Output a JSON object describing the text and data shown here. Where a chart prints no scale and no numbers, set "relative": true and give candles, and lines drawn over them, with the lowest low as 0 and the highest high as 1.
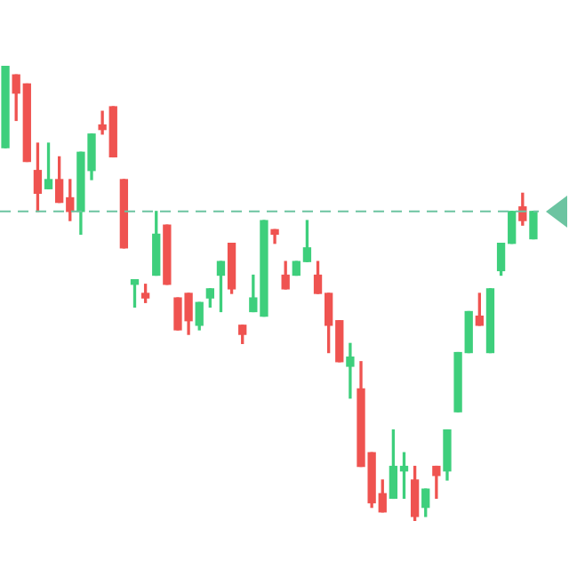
{
  "chart_data": {
    "type": "candlestick",
    "relative": true,
    "categories": [
      null,
      null,
      null,
      null,
      null,
      null,
      null,
      null,
      null,
      null,
      null,
      null,
      null,
      null,
      null,
      null,
      null,
      null,
      null,
      null,
      null,
      null,
      null,
      null,
      null,
      null,
      null,
      null,
      null,
      null,
      null,
      null,
      null,
      null,
      null,
      null,
      null,
      null,
      null,
      null,
      null,
      null,
      null,
      null,
      null,
      null,
      null,
      null,
      null,
      null
    ],
    "ohlc": [
      [
        0.82,
        1.0,
        0.82,
        1.0
      ],
      [
        0.98,
        0.98,
        0.88,
        0.94
      ],
      [
        0.96,
        0.96,
        0.79,
        0.79
      ],
      [
        0.77,
        0.83,
        0.68,
        0.72
      ],
      [
        0.73,
        0.83,
        0.73,
        0.75
      ],
      [
        0.75,
        0.8,
        0.7,
        0.7
      ],
      [
        0.71,
        0.75,
        0.66,
        0.68
      ],
      [
        0.68,
        0.81,
        0.63,
        0.81
      ],
      [
        0.77,
        0.85,
        0.75,
        0.85
      ],
      [
        0.87,
        0.9,
        0.85,
        0.86
      ],
      [
        0.91,
        0.91,
        0.8,
        0.8
      ],
      [
        0.75,
        0.75,
        0.6,
        0.6
      ],
      [
        0.52,
        0.53,
        0.47,
        0.53
      ],
      [
        0.5,
        0.52,
        0.48,
        0.49
      ],
      [
        0.54,
        0.68,
        0.54,
        0.63
      ],
      [
        0.65,
        0.65,
        0.52,
        0.52
      ],
      [
        0.49,
        0.49,
        0.42,
        0.42
      ],
      [
        0.5,
        0.5,
        0.41,
        0.44
      ],
      [
        0.43,
        0.48,
        0.42,
        0.48
      ],
      [
        0.49,
        0.51,
        0.47,
        0.51
      ],
      [
        0.54,
        0.57,
        0.46,
        0.57
      ],
      [
        0.61,
        0.61,
        0.5,
        0.51
      ],
      [
        0.43,
        0.43,
        0.39,
        0.41
      ],
      [
        0.46,
        0.54,
        0.46,
        0.49
      ],
      [
        0.45,
        0.66,
        0.45,
        0.66
      ],
      [
        0.64,
        0.64,
        0.61,
        0.63
      ],
      [
        0.54,
        0.57,
        0.51,
        0.51
      ],
      [
        0.54,
        0.57,
        0.54,
        0.57
      ],
      [
        0.57,
        0.66,
        0.57,
        0.6
      ],
      [
        0.54,
        0.57,
        0.5,
        0.5
      ],
      [
        0.5,
        0.5,
        0.37,
        0.43
      ],
      [
        0.44,
        0.44,
        0.35,
        0.35
      ],
      [
        0.34,
        0.39,
        0.27,
        0.36
      ],
      [
        0.29,
        0.35,
        0.12,
        0.12
      ],
      [
        0.15,
        0.15,
        0.03,
        0.04
      ],
      [
        0.06,
        0.09,
        0.02,
        0.02
      ],
      [
        0.05,
        0.2,
        0.05,
        0.12
      ],
      [
        0.11,
        0.15,
        0.05,
        0.12
      ],
      [
        0.09,
        0.12,
        0.0,
        0.01
      ],
      [
        0.03,
        0.07,
        0.01,
        0.07
      ],
      [
        0.12,
        0.12,
        0.05,
        0.1
      ],
      [
        0.11,
        0.2,
        0.09,
        0.2
      ],
      [
        0.24,
        0.37,
        0.24,
        0.37
      ],
      [
        0.37,
        0.46,
        0.37,
        0.46
      ],
      [
        0.45,
        0.5,
        0.43,
        0.43
      ],
      [
        0.37,
        0.51,
        0.37,
        0.51
      ],
      [
        0.55,
        0.61,
        0.54,
        0.61
      ],
      [
        0.61,
        0.68,
        0.61,
        0.68
      ],
      [
        0.69,
        0.72,
        0.65,
        0.66
      ],
      [
        0.62,
        0.68,
        0.62,
        0.68
      ]
    ],
    "colors": [
      "#3ecf7c",
      "#ef5350",
      "#ef5350",
      "#ef5350",
      "#3ecf7c",
      "#ef5350",
      "#ef5350",
      "#3ecf7c",
      "#3ecf7c",
      "#ef5350",
      "#ef5350",
      "#ef5350",
      "#3ecf7c",
      "#ef5350",
      "#3ecf7c",
      "#ef5350",
      "#ef5350",
      "#ef5350",
      "#3ecf7c",
      "#3ecf7c",
      "#3ecf7c",
      "#ef5350",
      "#ef5350",
      "#3ecf7c",
      "#3ecf7c",
      "#ef5350",
      "#ef5350",
      "#3ecf7c",
      "#3ecf7c",
      "#ef5350",
      "#ef5350",
      "#ef5350",
      "#3ecf7c",
      "#ef5350",
      "#ef5350",
      "#ef5350",
      "#3ecf7c",
      "#3ecf7c",
      "#ef5350",
      "#3ecf7c",
      "#ef5350",
      "#3ecf7c",
      "#3ecf7c",
      "#3ecf7c",
      "#ef5350",
      "#3ecf7c",
      "#3ecf7c",
      "#3ecf7c",
      "#ef5350",
      "#3ecf7c"
    ],
    "ref_lines": [
      {
        "axis": "y",
        "value": 0.68,
        "color": "#6cc4a1",
        "line_style": "dashed"
      }
    ],
    "legend": false
  }
}
